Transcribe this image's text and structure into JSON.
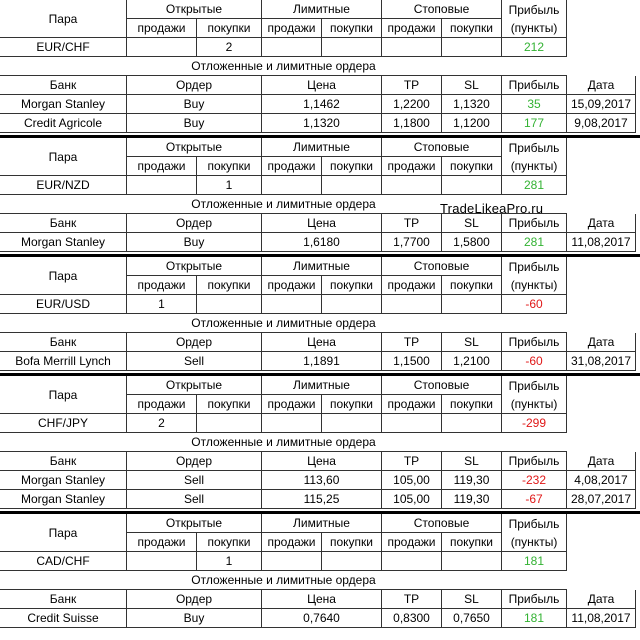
{
  "headers": {
    "pair": "Пара",
    "open": "Открытые",
    "limit": "Лимитные",
    "stop": "Стоповые",
    "profit": "Прибыль",
    "sell": "продажи",
    "buy": "покупки",
    "points": "(пункты)",
    "section": "Отложенные и лимитные ордера",
    "bank": "Банк",
    "order": "Ордер",
    "price": "Цена",
    "tp": "TP",
    "sl": "SL",
    "date": "Дата"
  },
  "watermark": "TradeLikeaPro.ru",
  "colors": {
    "positive": "#33b233",
    "negative": "#e01818"
  },
  "blocks": [
    {
      "pair": "EUR/CHF",
      "open_sell": "",
      "open_buy": "2",
      "profit": "212",
      "profit_sign": "positive",
      "orders": [
        {
          "bank": "Morgan Stanley",
          "order": "Buy",
          "price": "1,1462",
          "tp": "1,2200",
          "sl": "1,1320",
          "profit": "35",
          "profit_sign": "positive",
          "date": "15,09,2017"
        },
        {
          "bank": "Credit Agricole",
          "order": "Buy",
          "price": "1,1320",
          "tp": "1,1800",
          "sl": "1,1200",
          "profit": "177",
          "profit_sign": "positive",
          "date": "9,08,2017"
        }
      ]
    },
    {
      "pair": "EUR/NZD",
      "open_sell": "",
      "open_buy": "1",
      "profit": "281",
      "profit_sign": "positive",
      "orders": [
        {
          "bank": "Morgan Stanley",
          "order": "Buy",
          "price": "1,6180",
          "tp": "1,7700",
          "sl": "1,5800",
          "profit": "281",
          "profit_sign": "positive",
          "date": "11,08,2017"
        }
      ]
    },
    {
      "pair": "EUR/USD",
      "open_sell": "1",
      "open_buy": "",
      "profit": "-60",
      "profit_sign": "negative",
      "orders": [
        {
          "bank": "Bofa Merrill Lynch",
          "order": "Sell",
          "price": "1,1891",
          "tp": "1,1500",
          "sl": "1,2100",
          "profit": "-60",
          "profit_sign": "negative",
          "date": "31,08,2017"
        }
      ]
    },
    {
      "pair": "CHF/JPY",
      "open_sell": "2",
      "open_buy": "",
      "profit": "-299",
      "profit_sign": "negative",
      "orders": [
        {
          "bank": "Morgan Stanley",
          "order": "Sell",
          "price": "113,60",
          "tp": "105,00",
          "sl": "119,30",
          "profit": "-232",
          "profit_sign": "negative",
          "date": "4,08,2017"
        },
        {
          "bank": "Morgan Stanley",
          "order": "Sell",
          "price": "115,25",
          "tp": "105,00",
          "sl": "119,30",
          "profit": "-67",
          "profit_sign": "negative",
          "date": "28,07,2017"
        }
      ]
    },
    {
      "pair": "CAD/CHF",
      "open_sell": "",
      "open_buy": "1",
      "profit": "181",
      "profit_sign": "positive",
      "orders": [
        {
          "bank": "Credit Suisse",
          "order": "Buy",
          "price": "0,7640",
          "tp": "0,8300",
          "sl": "0,7650",
          "profit": "181",
          "profit_sign": "positive",
          "date": "11,08,2017"
        }
      ]
    }
  ]
}
